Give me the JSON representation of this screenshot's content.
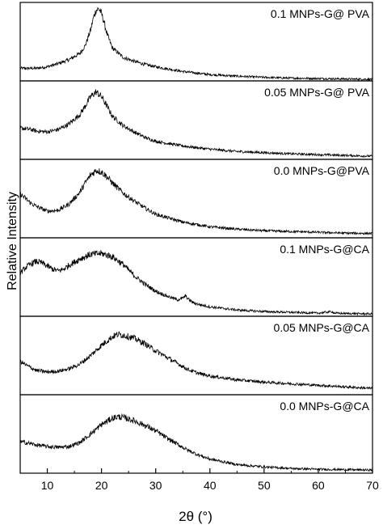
{
  "chart_data": {
    "type": "line",
    "xlabel": "2θ (°)",
    "ylabel": "Relative Intensity",
    "xlim": [
      5,
      70
    ],
    "xticks": [
      10,
      20,
      30,
      40,
      50,
      60,
      70
    ],
    "grid": false,
    "stacked_panels": true,
    "line_color": "#000000",
    "series": [
      {
        "name": "0.1 MNPs-G@ PVA",
        "x": [
          5,
          8,
          10,
          12,
          14,
          16,
          17,
          18,
          18.5,
          19,
          19.5,
          20,
          20.5,
          21,
          22,
          24,
          26,
          28,
          30,
          35,
          40,
          45,
          50,
          55,
          60,
          65,
          70
        ],
        "y": [
          0.16,
          0.16,
          0.18,
          0.22,
          0.27,
          0.35,
          0.45,
          0.65,
          0.8,
          0.9,
          0.92,
          0.86,
          0.74,
          0.6,
          0.42,
          0.3,
          0.25,
          0.21,
          0.18,
          0.12,
          0.08,
          0.06,
          0.045,
          0.035,
          0.03,
          0.025,
          0.02
        ]
      },
      {
        "name": "0.05 MNPs-G@ PVA",
        "x": [
          5,
          7,
          8,
          10,
          12,
          14,
          16,
          17,
          18,
          19,
          20,
          21,
          22,
          24,
          26,
          28,
          30,
          35,
          40,
          45,
          50,
          55,
          60,
          65,
          70
        ],
        "y": [
          0.4,
          0.38,
          0.36,
          0.35,
          0.38,
          0.45,
          0.57,
          0.68,
          0.8,
          0.86,
          0.8,
          0.68,
          0.55,
          0.43,
          0.35,
          0.28,
          0.23,
          0.17,
          0.13,
          0.1,
          0.085,
          0.07,
          0.06,
          0.05,
          0.04
        ]
      },
      {
        "name": "0.0 MNPs-G@PVA",
        "x": [
          5,
          6,
          7,
          8,
          10,
          12,
          14,
          16,
          17,
          18,
          19,
          20,
          21,
          22,
          24,
          26,
          28,
          30,
          35,
          40,
          45,
          50,
          55,
          60,
          65,
          70
        ],
        "y": [
          0.56,
          0.5,
          0.44,
          0.4,
          0.34,
          0.35,
          0.43,
          0.58,
          0.7,
          0.8,
          0.86,
          0.84,
          0.78,
          0.7,
          0.57,
          0.47,
          0.38,
          0.3,
          0.2,
          0.14,
          0.11,
          0.09,
          0.08,
          0.07,
          0.06,
          0.055
        ]
      },
      {
        "name": "0.1 MNPs-G@CA",
        "x": [
          5,
          6,
          7,
          8,
          9,
          10,
          11,
          12,
          13,
          14,
          16,
          18,
          20,
          22,
          24,
          26,
          28,
          30,
          32,
          34,
          35,
          35.5,
          36,
          37,
          38,
          40,
          45,
          50,
          55,
          60,
          62.5,
          63,
          65,
          70
        ],
        "y": [
          0.55,
          0.62,
          0.67,
          0.7,
          0.68,
          0.64,
          0.6,
          0.58,
          0.6,
          0.65,
          0.73,
          0.79,
          0.8,
          0.76,
          0.66,
          0.52,
          0.41,
          0.32,
          0.26,
          0.21,
          0.23,
          0.26,
          0.22,
          0.17,
          0.15,
          0.12,
          0.08,
          0.06,
          0.05,
          0.04,
          0.06,
          0.04,
          0.035,
          0.03
        ]
      },
      {
        "name": "0.05 MNPs-G@CA",
        "x": [
          5,
          6,
          8,
          10,
          12,
          14,
          16,
          18,
          20,
          22,
          23,
          24,
          26,
          28,
          30,
          32,
          34,
          36,
          38,
          40,
          45,
          50,
          55,
          60,
          65,
          70
        ],
        "y": [
          0.43,
          0.38,
          0.31,
          0.29,
          0.3,
          0.33,
          0.39,
          0.5,
          0.63,
          0.74,
          0.77,
          0.76,
          0.72,
          0.65,
          0.56,
          0.48,
          0.4,
          0.32,
          0.27,
          0.24,
          0.19,
          0.16,
          0.14,
          0.12,
          0.1,
          0.08
        ]
      },
      {
        "name": "0.0 MNPs-G@CA",
        "x": [
          5,
          6,
          8,
          10,
          12,
          14,
          16,
          18,
          20,
          22,
          23,
          24,
          26,
          28,
          30,
          32,
          34,
          36,
          38,
          40,
          45,
          50,
          55,
          60,
          65,
          70
        ],
        "y": [
          0.4,
          0.39,
          0.36,
          0.34,
          0.33,
          0.34,
          0.39,
          0.5,
          0.62,
          0.7,
          0.72,
          0.71,
          0.67,
          0.61,
          0.54,
          0.45,
          0.37,
          0.29,
          0.23,
          0.18,
          0.11,
          0.08,
          0.06,
          0.05,
          0.045,
          0.04
        ]
      }
    ]
  }
}
